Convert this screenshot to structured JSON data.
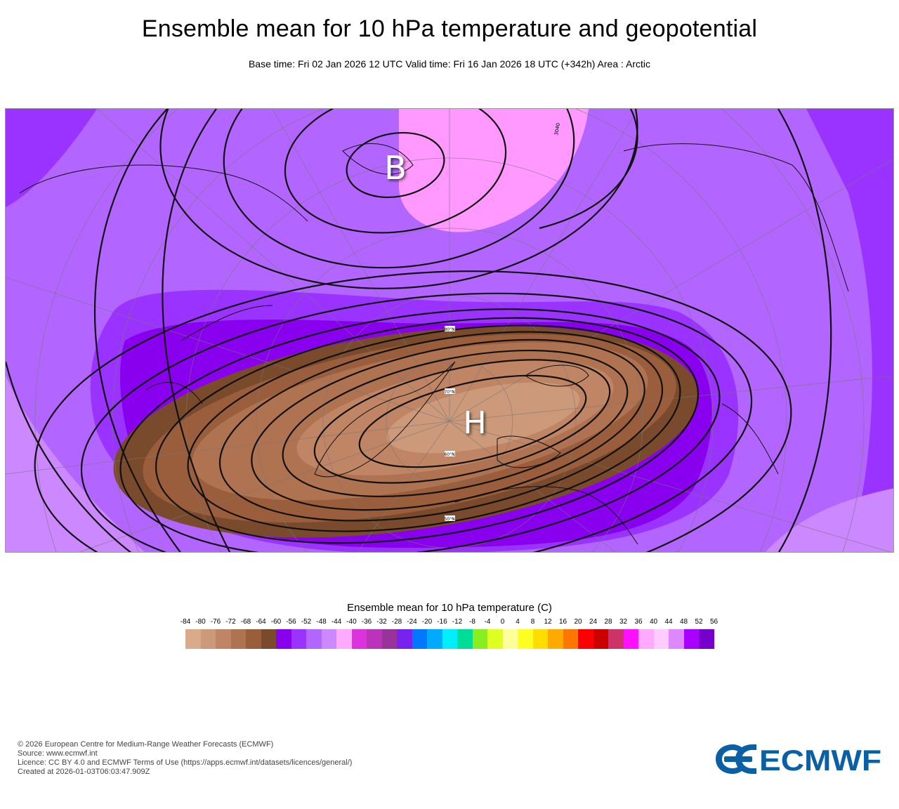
{
  "header": {
    "title": "Ensemble mean for 10 hPa temperature and geopotential",
    "subtitle": "Base time: Fri 02 Jan 2026 12 UTC Valid time: Fri 16 Jan 2026 18 UTC (+342h) Area : Arctic"
  },
  "map": {
    "low_label": "B",
    "high_label": "H",
    "latitude_labels": [
      "80°N",
      "70°N",
      "60°N",
      "50°N"
    ],
    "contour_label": "3040"
  },
  "legend": {
    "title": "Ensemble mean for 10 hPa temperature (C)",
    "ticks": [
      "-84",
      "-80",
      "-76",
      "-72",
      "-68",
      "-64",
      "-60",
      "-56",
      "-52",
      "-48",
      "-44",
      "-40",
      "-36",
      "-32",
      "-28",
      "-24",
      "-20",
      "-16",
      "-12",
      "-8",
      "-4",
      "0",
      "4",
      "8",
      "12",
      "16",
      "20",
      "24",
      "28",
      "32",
      "36",
      "40",
      "44",
      "48",
      "52",
      "56"
    ],
    "colors": [
      "#d9ab8a",
      "#cc9a7a",
      "#c08565",
      "#b07352",
      "#9a5e3c",
      "#7a4a2c",
      "#8800ee",
      "#9a33ff",
      "#b266ff",
      "#cc88ff",
      "#ffaaff",
      "#dd33dd",
      "#bb33bb",
      "#993399",
      "#7722ee",
      "#0077ff",
      "#00aaff",
      "#00eeff",
      "#00dd99",
      "#88ee22",
      "#ddff22",
      "#ffff99",
      "#ffff22",
      "#ffdd00",
      "#ffaa00",
      "#ff7700",
      "#ff0000",
      "#cc0000",
      "#cc3366",
      "#ff11ff",
      "#ffaaff",
      "#ffccff",
      "#dd88ff",
      "#aa00ff",
      "#7700cc"
    ]
  },
  "footer": {
    "lines": [
      "© 2026 European Centre for Medium-Range Weather Forecasts (ECMWF)",
      "Source: www.ecmwf.int",
      "Licence: CC BY 4.0 and ECMWF Terms of Use (https://apps.ecmwf.int/datasets/licences/general/)",
      "Created at 2026-01-03T06:03:47.909Z"
    ],
    "logo_text": "ECMWF",
    "logo_color": "#0b5fa5"
  }
}
